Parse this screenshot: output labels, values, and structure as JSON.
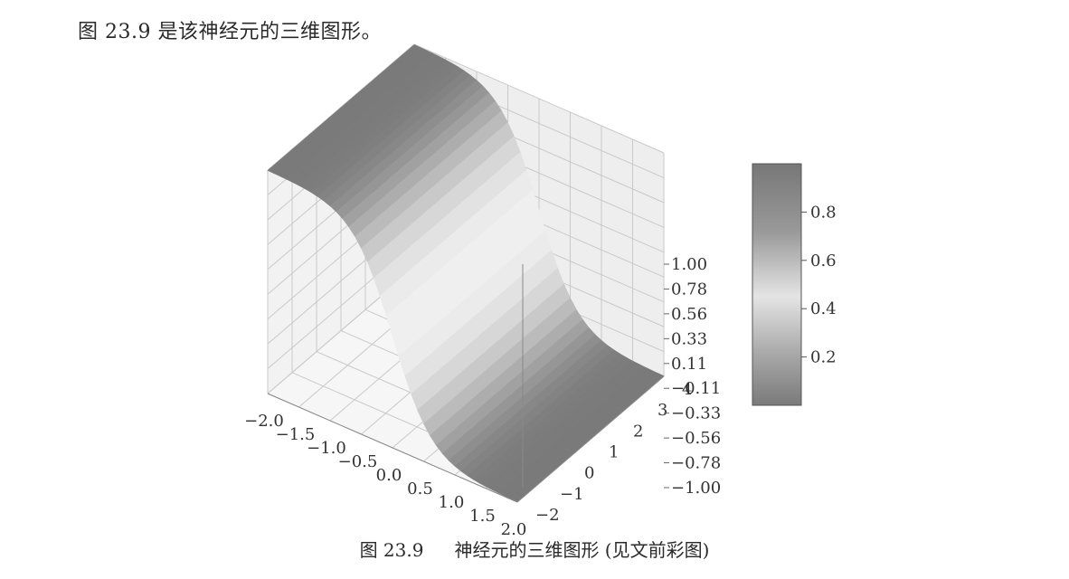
{
  "text": {
    "intro": "图 23.9 是该神经元的三维图形。",
    "caption_number": "图 23.9",
    "caption_text": "神经元的三维图形 (见文前彩图)"
  },
  "chart_data": {
    "type": "surface3d",
    "title": "",
    "x_ticks": [
      "−2.0",
      "−1.5",
      "−1.0",
      "−0.5",
      "0.0",
      "0.5",
      "1.0",
      "1.5",
      "2.0"
    ],
    "y_ticks": [
      "−2",
      "−1",
      "0",
      "1",
      "2",
      "3",
      "4"
    ],
    "z_ticks": [
      "1.00",
      "0.78",
      "0.56",
      "0.33",
      "0.11",
      "−0.11",
      "−0.33",
      "−0.56",
      "−0.78",
      "−1.00"
    ],
    "colorbar_ticks": [
      "0.8",
      "0.6",
      "0.4",
      "0.2"
    ],
    "x_range": [
      -2,
      2
    ],
    "y_range": [
      -2,
      4
    ],
    "z_range": [
      -1,
      1
    ],
    "colorbar_range": [
      0,
      1
    ],
    "grid": true,
    "colorbar": "right"
  }
}
